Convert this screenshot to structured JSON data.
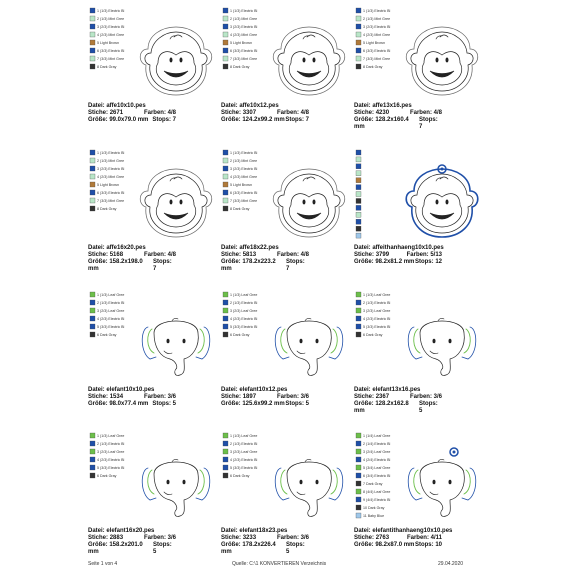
{
  "labels": {
    "file": "Datei:",
    "stitches": "Stiche:",
    "colors": "Farben:",
    "size": "Größe:",
    "stops": "Stops:"
  },
  "items": [
    {
      "file": "affe10x10.pes",
      "stitches": "2671",
      "colors": "4/8",
      "size": "99.0x79.0 mm",
      "stops": "7",
      "threads": [
        {
          "text": "1 (1/3) Electric Bl",
          "color": "#1f4fa8"
        },
        {
          "text": "2 (1/3) Mint Gree",
          "color": "#b9e6c8"
        },
        {
          "text": "3 (2/3) Electric Bl",
          "color": "#1f4fa8"
        },
        {
          "text": "4 (2/3) Mint Gree",
          "color": "#b9e6c8"
        },
        {
          "text": "5 Light Brown",
          "color": "#b07a3a"
        },
        {
          "text": "6 (3/3) Electric Bl",
          "color": "#1f4fa8"
        },
        {
          "text": "7 (3/3) Mint Gree",
          "color": "#b9e6c8"
        },
        {
          "text": "8 Dark Gray",
          "color": "#333333"
        }
      ]
    },
    {
      "file": "affe10x12.pes",
      "stitches": "3307",
      "colors": "4/8",
      "size": "124.2x99.2 mm",
      "stops": "7",
      "threads": [
        {
          "text": "1 (1/3) Electric Bl",
          "color": "#1f4fa8"
        },
        {
          "text": "2 (1/3) Mint Gree",
          "color": "#b9e6c8"
        },
        {
          "text": "3 (2/3) Electric Bl",
          "color": "#1f4fa8"
        },
        {
          "text": "4 (2/3) Mint Gree",
          "color": "#b9e6c8"
        },
        {
          "text": "5 Light Brown",
          "color": "#b07a3a"
        },
        {
          "text": "6 (3/3) Electric Bl",
          "color": "#1f4fa8"
        },
        {
          "text": "7 (3/3) Mint Gree",
          "color": "#b9e6c8"
        },
        {
          "text": "8 Dark Gray",
          "color": "#333333"
        }
      ]
    },
    {
      "file": "affe13x16.pes",
      "stitches": "4230",
      "colors": "4/8",
      "size": "128.2x160.4 mm",
      "stops": "7",
      "threads": [
        {
          "text": "1 (1/3) Electric Bl",
          "color": "#1f4fa8"
        },
        {
          "text": "2 (1/3) Mint Gree",
          "color": "#b9e6c8"
        },
        {
          "text": "3 (2/3) Electric Bl",
          "color": "#1f4fa8"
        },
        {
          "text": "4 (2/3) Mint Gree",
          "color": "#b9e6c8"
        },
        {
          "text": "5 Light Brown",
          "color": "#b07a3a"
        },
        {
          "text": "6 (3/3) Electric Bl",
          "color": "#1f4fa8"
        },
        {
          "text": "7 (3/3) Mint Gree",
          "color": "#b9e6c8"
        },
        {
          "text": "8 Dark Gray",
          "color": "#333333"
        }
      ]
    },
    {
      "file": "affe16x20.pes",
      "stitches": "5168",
      "colors": "4/8",
      "size": "158.2x198.0 mm",
      "stops": "7",
      "threads": [
        {
          "text": "1 (1/3) Electric Bl",
          "color": "#1f4fa8"
        },
        {
          "text": "2 (1/3) Mint Gree",
          "color": "#b9e6c8"
        },
        {
          "text": "3 (2/3) Electric Bl",
          "color": "#1f4fa8"
        },
        {
          "text": "4 (2/3) Mint Gree",
          "color": "#b9e6c8"
        },
        {
          "text": "5 Light Brown",
          "color": "#b07a3a"
        },
        {
          "text": "6 (3/3) Electric Bl",
          "color": "#1f4fa8"
        },
        {
          "text": "7 (3/3) Mint Gree",
          "color": "#b9e6c8"
        },
        {
          "text": "8 Dark Gray",
          "color": "#333333"
        }
      ]
    },
    {
      "file": "affe18x22.pes",
      "stitches": "5813",
      "colors": "4/8",
      "size": "178.2x223.2 mm",
      "stops": "7",
      "threads": [
        {
          "text": "1 (1/3) Electric Bl",
          "color": "#1f4fa8"
        },
        {
          "text": "2 (1/3) Mint Gree",
          "color": "#b9e6c8"
        },
        {
          "text": "3 (2/3) Electric Bl",
          "color": "#1f4fa8"
        },
        {
          "text": "4 (2/3) Mint Gree",
          "color": "#b9e6c8"
        },
        {
          "text": "5 Light Brown",
          "color": "#b07a3a"
        },
        {
          "text": "6 (3/3) Electric Bl",
          "color": "#1f4fa8"
        },
        {
          "text": "7 (3/3) Mint Gree",
          "color": "#b9e6c8"
        },
        {
          "text": "8 Dark Gray",
          "color": "#333333"
        }
      ]
    },
    {
      "file": "affeithanhaeng10x10.pes",
      "stitches": "3799",
      "colors": "5/13",
      "size": "98.2x81.2 mm",
      "stops": "12",
      "threads": [
        {
          "color": "#1f4fa8"
        },
        {
          "color": "#b9e6c8"
        },
        {
          "color": "#1f4fa8"
        },
        {
          "color": "#b9e6c8"
        },
        {
          "color": "#b07a3a"
        },
        {
          "color": "#1f4fa8"
        },
        {
          "color": "#b9e6c8"
        },
        {
          "color": "#333333"
        },
        {
          "color": "#1f4fa8"
        },
        {
          "color": "#b9e6c8"
        },
        {
          "color": "#1f4fa8"
        },
        {
          "color": "#333333"
        },
        {
          "color": "#9fc8ea"
        }
      ]
    },
    {
      "file": "elefant10x10.pes",
      "stitches": "1534",
      "colors": "3/6",
      "size": "98.0x77.4 mm",
      "stops": "5",
      "threads": [
        {
          "text": "1 (1/3) Leaf Gree",
          "color": "#6cbf4a"
        },
        {
          "text": "2 (1/3) Electric Bl",
          "color": "#1f4fa8"
        },
        {
          "text": "3 (2/3) Leaf Gree",
          "color": "#6cbf4a"
        },
        {
          "text": "4 (2/3) Electric Bl",
          "color": "#1f4fa8"
        },
        {
          "text": "5 (3/3) Electric Bl",
          "color": "#1f4fa8"
        },
        {
          "text": "6 Dark Gray",
          "color": "#333333"
        }
      ]
    },
    {
      "file": "elefant10x12.pes",
      "stitches": "1897",
      "colors": "3/6",
      "size": "125.6x99.2 mm",
      "stops": "5",
      "threads": [
        {
          "text": "1 (1/3) Leaf Gree",
          "color": "#6cbf4a"
        },
        {
          "text": "2 (1/3) Electric Bl",
          "color": "#1f4fa8"
        },
        {
          "text": "3 (2/3) Leaf Gree",
          "color": "#6cbf4a"
        },
        {
          "text": "4 (2/3) Electric Bl",
          "color": "#1f4fa8"
        },
        {
          "text": "5 (3/3) Electric Bl",
          "color": "#1f4fa8"
        },
        {
          "text": "6 Dark Gray",
          "color": "#333333"
        }
      ]
    },
    {
      "file": "elefant13x16.pes",
      "stitches": "2367",
      "colors": "3/6",
      "size": "128.2x162.8 mm",
      "stops": "5",
      "threads": [
        {
          "text": "1 (1/3) Leaf Gree",
          "color": "#6cbf4a"
        },
        {
          "text": "2 (1/3) Electric Bl",
          "color": "#1f4fa8"
        },
        {
          "text": "3 (2/3) Leaf Gree",
          "color": "#6cbf4a"
        },
        {
          "text": "4 (2/3) Electric Bl",
          "color": "#1f4fa8"
        },
        {
          "text": "5 (3/3) Electric Bl",
          "color": "#1f4fa8"
        },
        {
          "text": "6 Dark Gray",
          "color": "#333333"
        }
      ]
    },
    {
      "file": "elefant16x20.pes",
      "stitches": "2883",
      "colors": "3/6",
      "size": "158.2x201.0 mm",
      "stops": "5",
      "threads": [
        {
          "text": "1 (1/3) Leaf Gree",
          "color": "#6cbf4a"
        },
        {
          "text": "2 (1/3) Electric Bl",
          "color": "#1f4fa8"
        },
        {
          "text": "3 (2/3) Leaf Gree",
          "color": "#6cbf4a"
        },
        {
          "text": "4 (2/3) Electric Bl",
          "color": "#1f4fa8"
        },
        {
          "text": "5 (3/3) Electric Bl",
          "color": "#1f4fa8"
        },
        {
          "text": "6 Dark Gray",
          "color": "#333333"
        }
      ]
    },
    {
      "file": "elefant18x23.pes",
      "stitches": "3233",
      "colors": "3/6",
      "size": "178.2x226.4 mm",
      "stops": "5",
      "threads": [
        {
          "text": "1 (1/3) Leaf Gree",
          "color": "#6cbf4a"
        },
        {
          "text": "2 (1/3) Electric Bl",
          "color": "#1f4fa8"
        },
        {
          "text": "3 (2/3) Leaf Gree",
          "color": "#6cbf4a"
        },
        {
          "text": "4 (2/3) Electric Bl",
          "color": "#1f4fa8"
        },
        {
          "text": "5 (3/3) Electric Bl",
          "color": "#1f4fa8"
        },
        {
          "text": "6 Dark Gray",
          "color": "#333333"
        }
      ]
    },
    {
      "file": "elefantithanhaeng10x10.pes",
      "stitches": "2763",
      "colors": "4/11",
      "size": "98.2x87.0 mm",
      "stops": "10",
      "threads": [
        {
          "text": "1 (1/4) Leaf Gree",
          "color": "#6cbf4a"
        },
        {
          "text": "2 (1/4) Electric Bl",
          "color": "#1f4fa8"
        },
        {
          "text": "3 (2/4) Leaf Gree",
          "color": "#6cbf4a"
        },
        {
          "text": "4 (2/4) Electric Bl",
          "color": "#1f4fa8"
        },
        {
          "text": "5 (3/4) Leaf Gree",
          "color": "#6cbf4a"
        },
        {
          "text": "6 (3/4) Electric Bl",
          "color": "#1f4fa8"
        },
        {
          "text": "7 Dark Gray",
          "color": "#333333"
        },
        {
          "text": "8 (4/4) Leaf Gree",
          "color": "#6cbf4a"
        },
        {
          "text": "9 (4/4) Electric Bl",
          "color": "#1f4fa8"
        },
        {
          "text": "10 Dark Gray",
          "color": "#333333"
        },
        {
          "text": "11 Baby Blue",
          "color": "#9fc8ea"
        }
      ]
    }
  ],
  "footer": {
    "left": "Seite 1 von 4",
    "center": "Quelle: C:\\1 KONVERTIEREN Verzeichnis",
    "right": "29.04.2020"
  }
}
